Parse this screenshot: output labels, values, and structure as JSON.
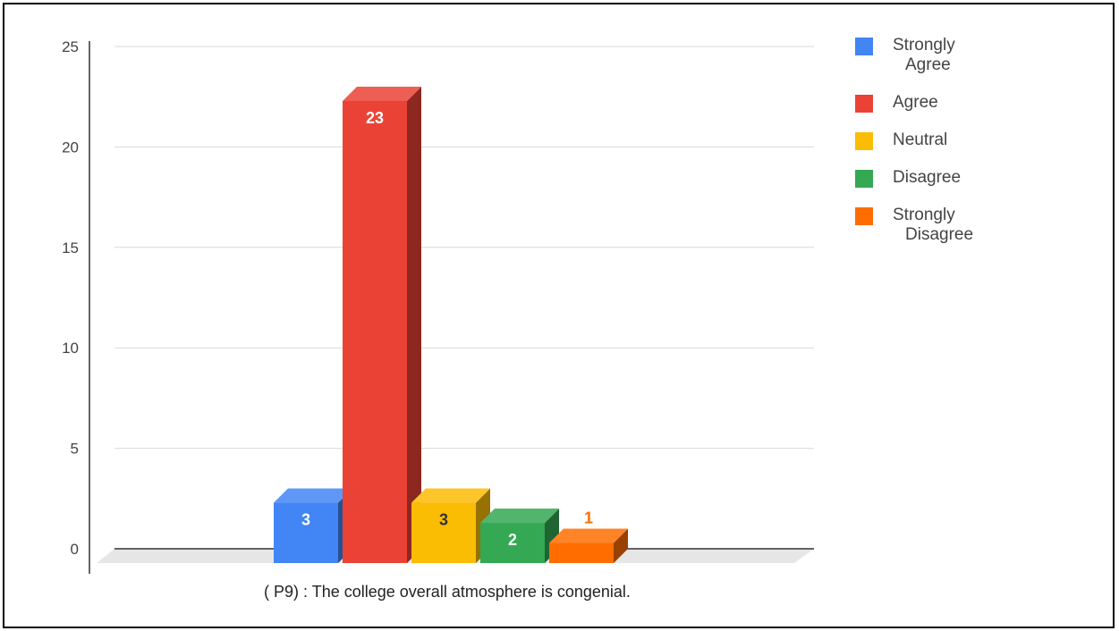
{
  "chart_data": {
    "type": "bar",
    "categories": [
      "Strongly Agree",
      "Agree",
      "Neutral",
      "Disagree",
      "Strongly Disagree"
    ],
    "values": [
      3,
      23,
      3,
      2,
      1
    ],
    "data_labels": [
      "3",
      "23",
      "3",
      "2",
      "1"
    ],
    "colors": [
      "#4285F4",
      "#EA4335",
      "#FBBC04",
      "#34A853",
      "#FF6D01"
    ],
    "ylim": [
      0,
      25
    ],
    "yticks": [
      "0",
      "5",
      "10",
      "15",
      "20",
      "25"
    ],
    "xlabel": "( P9) :  The college overall atmosphere is congenial.",
    "legend": [
      {
        "line1": "Strongly",
        "line2": "Agree"
      },
      {
        "line1": "Agree",
        "line2": ""
      },
      {
        "line1": "Neutral",
        "line2": ""
      },
      {
        "line1": "Disagree",
        "line2": ""
      },
      {
        "line1": "Strongly",
        "line2": "Disagree"
      }
    ],
    "legend_position": "right",
    "grid": true,
    "style": "3d-bar"
  }
}
